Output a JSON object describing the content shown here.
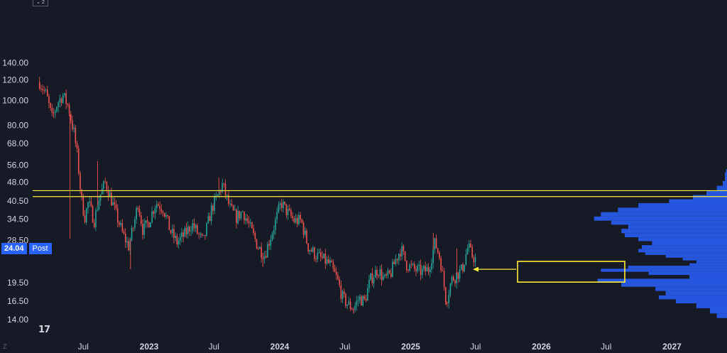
{
  "toolbar": {
    "scale_icon": "expand-icon"
  },
  "price_badge": {
    "value": "24.04",
    "session_label": "Post"
  },
  "logo": "tradingview-logo",
  "colors": {
    "background": "#161a25",
    "up": "#26a69a",
    "down": "#ef5350",
    "volume_profile": "#2962ff",
    "annotation": "#ffeb3b",
    "axis_text": "#d1d4dc"
  },
  "chart_data": {
    "type": "candlestick",
    "y_scale": "log",
    "ylim": [
      13.5,
      150
    ],
    "y_ticks": [
      "140.00",
      "120.00",
      "100.00",
      "80.00",
      "68.00",
      "56.00",
      "48.00",
      "40.50",
      "34.50",
      "28.50",
      "24.04",
      "19.50",
      "16.50",
      "14.00"
    ],
    "x_ticks": [
      "Jul",
      "2023",
      "Jul",
      "2024",
      "Jul",
      "2025",
      "Jul",
      "2026",
      "Jul",
      "2027"
    ],
    "x_ticks_bold": [
      "2023",
      "2024",
      "2025",
      "2026",
      "2027"
    ],
    "last_price": 24.04,
    "price_path": [
      [
        "2022-03-01",
        118
      ],
      [
        "2022-03-20",
        105
      ],
      [
        "2022-04-05",
        85
      ],
      [
        "2022-04-20",
        98
      ],
      [
        "2022-05-05",
        105
      ],
      [
        "2022-05-20",
        95
      ],
      [
        "2022-06-05",
        75
      ],
      [
        "2022-06-15",
        60
      ],
      [
        "2022-06-25",
        42
      ],
      [
        "2022-07-05",
        35
      ],
      [
        "2022-07-15",
        40
      ],
      [
        "2022-08-01",
        34
      ],
      [
        "2022-08-15",
        42
      ],
      [
        "2022-09-01",
        48
      ],
      [
        "2022-09-15",
        42
      ],
      [
        "2022-10-01",
        36
      ],
      [
        "2022-10-20",
        30
      ],
      [
        "2022-11-05",
        27
      ],
      [
        "2022-11-20",
        33
      ],
      [
        "2022-12-01",
        40
      ],
      [
        "2022-12-15",
        31
      ],
      [
        "2023-01-01",
        34
      ],
      [
        "2023-01-20",
        40
      ],
      [
        "2023-02-10",
        38
      ],
      [
        "2023-03-01",
        31
      ],
      [
        "2023-03-20",
        28
      ],
      [
        "2023-04-10",
        30
      ],
      [
        "2023-05-01",
        33
      ],
      [
        "2023-06-01",
        28
      ],
      [
        "2023-06-25",
        38
      ],
      [
        "2023-07-10",
        42
      ],
      [
        "2023-07-25",
        47
      ],
      [
        "2023-08-15",
        38
      ],
      [
        "2023-09-01",
        35
      ],
      [
        "2023-09-20",
        37
      ],
      [
        "2023-10-10",
        32
      ],
      [
        "2023-11-01",
        27
      ],
      [
        "2023-11-20",
        25
      ],
      [
        "2023-12-15",
        32
      ],
      [
        "2024-01-05",
        40
      ],
      [
        "2024-01-20",
        37
      ],
      [
        "2024-02-10",
        34
      ],
      [
        "2024-03-01",
        34
      ],
      [
        "2024-03-20",
        27
      ],
      [
        "2024-04-10",
        25
      ],
      [
        "2024-05-01",
        24
      ],
      [
        "2024-05-20",
        23
      ],
      [
        "2024-06-10",
        20
      ],
      [
        "2024-06-25",
        17
      ],
      [
        "2024-07-10",
        16
      ],
      [
        "2024-07-25",
        15.5
      ],
      [
        "2024-08-10",
        17
      ],
      [
        "2024-08-25",
        16.5
      ],
      [
        "2024-09-10",
        20
      ],
      [
        "2024-10-01",
        22
      ],
      [
        "2024-10-20",
        20
      ],
      [
        "2024-11-05",
        21
      ],
      [
        "2024-11-20",
        24
      ],
      [
        "2024-12-05",
        26.5
      ],
      [
        "2024-12-20",
        23
      ],
      [
        "2025-01-10",
        22
      ],
      [
        "2025-02-01",
        21.5
      ],
      [
        "2025-02-20",
        22
      ],
      [
        "2025-03-10",
        28
      ],
      [
        "2025-03-25",
        24
      ],
      [
        "2025-04-10",
        16.5
      ],
      [
        "2025-04-25",
        20
      ],
      [
        "2025-05-10",
        21
      ],
      [
        "2025-05-25",
        22
      ],
      [
        "2025-06-10",
        27
      ],
      [
        "2025-06-20",
        25
      ],
      [
        "2025-07-01",
        24.04
      ]
    ],
    "spike_highs": [
      [
        "2022-08-10",
        58
      ],
      [
        "2023-07-15",
        50
      ],
      [
        "2025-03-05",
        30.5
      ],
      [
        "2025-05-10",
        26.5
      ]
    ],
    "spike_lows": [
      [
        "2022-05-25",
        29
      ],
      [
        "2022-11-10",
        22
      ],
      [
        "2023-11-15",
        22.5
      ],
      [
        "2024-07-25",
        14.8
      ],
      [
        "2025-04-10",
        16
      ]
    ],
    "resistance_levels": [
      44.5,
      42.2
    ],
    "volume_profile": [
      [
        14.2,
        0.06
      ],
      [
        14.8,
        0.1
      ],
      [
        15.5,
        0.18
      ],
      [
        16.2,
        0.3
      ],
      [
        16.8,
        0.4
      ],
      [
        17.4,
        0.36
      ],
      [
        18.1,
        0.42
      ],
      [
        18.8,
        0.62
      ],
      [
        19.5,
        0.76
      ],
      [
        20.2,
        0.22
      ],
      [
        20.9,
        0.46
      ],
      [
        21.5,
        0.74
      ],
      [
        22.1,
        0.58
      ],
      [
        22.7,
        0.22
      ],
      [
        23.2,
        0.18
      ],
      [
        23.8,
        0.26
      ],
      [
        24.4,
        0.36
      ],
      [
        25.0,
        0.48
      ],
      [
        25.6,
        0.52
      ],
      [
        26.4,
        0.5
      ],
      [
        27.3,
        0.44
      ],
      [
        28.3,
        0.52
      ],
      [
        29.3,
        0.6
      ],
      [
        30.4,
        0.62
      ],
      [
        31.6,
        0.58
      ],
      [
        32.8,
        0.68
      ],
      [
        34.0,
        0.78
      ],
      [
        35.3,
        0.74
      ],
      [
        36.7,
        0.64
      ],
      [
        38.2,
        0.52
      ],
      [
        39.8,
        0.34
      ],
      [
        41.2,
        0.2
      ],
      [
        42.8,
        0.12
      ],
      [
        44.6,
        0.06
      ],
      [
        46.5,
        0.025
      ],
      [
        48.5,
        0.012
      ],
      [
        52.5,
        0.006
      ]
    ],
    "annotation": {
      "type": "highlight-box-with-arrow",
      "price_range": [
        19.6,
        23.6
      ]
    }
  }
}
